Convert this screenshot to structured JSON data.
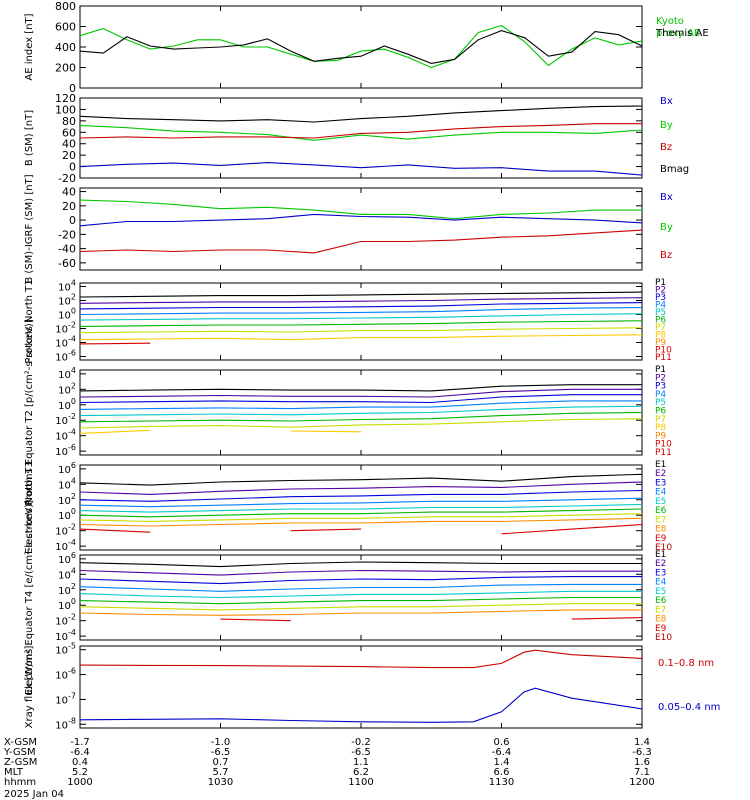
{
  "chart_data": [
    {
      "type": "line",
      "ylabel": "AE index [nT]",
      "yticks": [
        "800",
        "600",
        "400",
        "200",
        "0"
      ],
      "ylim": [
        0,
        800
      ],
      "x_hours": [
        0,
        0.083,
        0.167,
        0.25,
        0.333,
        0.417,
        0.5,
        0.583,
        0.667,
        0.75,
        0.833,
        0.917,
        1.0,
        1.083,
        1.167,
        1.25,
        1.333,
        1.417,
        1.5,
        1.583,
        1.667,
        1.75,
        1.833,
        1.917,
        2.0
      ],
      "series": [
        {
          "name": "Kyoto proxy AE",
          "color": "#00c800",
          "values": [
            510,
            580,
            470,
            380,
            410,
            470,
            470,
            400,
            400,
            330,
            260,
            270,
            360,
            380,
            300,
            200,
            280,
            540,
            610,
            450,
            220,
            380,
            490,
            420,
            460
          ]
        },
        {
          "name": "Themis AE",
          "color": "#000000",
          "values": [
            360,
            340,
            500,
            410,
            380,
            390,
            400,
            420,
            480,
            360,
            260,
            290,
            310,
            410,
            330,
            240,
            280,
            470,
            560,
            490,
            310,
            350,
            550,
            520,
            410
          ]
        }
      ]
    },
    {
      "type": "line",
      "ylabel": "B (SM) [nT]",
      "yticks": [
        "120",
        "100",
        "80",
        "60",
        "40",
        "20",
        "0",
        "-20"
      ],
      "ylim": [
        -20,
        120
      ],
      "x_hours": [
        0,
        0.167,
        0.333,
        0.5,
        0.667,
        0.833,
        1.0,
        1.167,
        1.333,
        1.5,
        1.667,
        1.833,
        2.0
      ],
      "series": [
        {
          "name": "Bx",
          "color": "#0000c8",
          "values": [
            0,
            4,
            6,
            2,
            7,
            3,
            -2,
            3,
            -3,
            -2,
            -8,
            -8,
            -15
          ]
        },
        {
          "name": "By",
          "color": "#00c800",
          "values": [
            72,
            68,
            62,
            60,
            56,
            46,
            55,
            48,
            55,
            60,
            60,
            58,
            64
          ]
        },
        {
          "name": "Bz",
          "color": "#c80000",
          "values": [
            50,
            52,
            50,
            52,
            52,
            50,
            58,
            60,
            66,
            70,
            72,
            75,
            75
          ]
        },
        {
          "name": "Bmag",
          "color": "#000000",
          "values": [
            88,
            84,
            82,
            80,
            82,
            78,
            84,
            88,
            94,
            98,
            102,
            105,
            106
          ]
        }
      ]
    },
    {
      "type": "line",
      "ylabel": "B (SM)-IGRF (SM) [nT]",
      "yticks": [
        "40",
        "20",
        "0",
        "-20",
        "-40",
        "-60"
      ],
      "ylim": [
        -70,
        45
      ],
      "x_hours": [
        0,
        0.167,
        0.333,
        0.5,
        0.667,
        0.833,
        1.0,
        1.167,
        1.333,
        1.5,
        1.667,
        1.833,
        2.0
      ],
      "series": [
        {
          "name": "Bx",
          "color": "#0000c8",
          "values": [
            -8,
            -2,
            -2,
            0,
            2,
            8,
            5,
            4,
            0,
            4,
            2,
            0,
            -4
          ]
        },
        {
          "name": "By",
          "color": "#00c800",
          "values": [
            28,
            26,
            22,
            16,
            18,
            14,
            8,
            8,
            2,
            8,
            10,
            14,
            14
          ]
        },
        {
          "name": "Bz",
          "color": "#c80000",
          "values": [
            -44,
            -42,
            -44,
            -42,
            -42,
            -46,
            -30,
            -30,
            -28,
            -24,
            -22,
            -18,
            -14
          ]
        }
      ]
    },
    {
      "type": "line",
      "ylabel": "Protons North T1",
      "log": true,
      "yticks_exp": [
        4,
        2,
        0,
        -2,
        -4,
        -6
      ],
      "ylim_exp": [
        -6.5,
        4.5
      ],
      "x_hours": [
        0,
        0.25,
        0.5,
        0.75,
        1.0,
        1.25,
        1.5,
        1.75,
        2.0
      ],
      "series": [
        {
          "name": "P1",
          "color": "#000000",
          "values": [
            2.5,
            2.6,
            2.7,
            2.7,
            2.8,
            2.9,
            3.0,
            3.1,
            3.2
          ]
        },
        {
          "name": "P2",
          "color": "#5000a0",
          "values": [
            1.6,
            1.7,
            1.8,
            1.8,
            1.9,
            2.0,
            2.2,
            2.3,
            2.4
          ]
        },
        {
          "name": "P3",
          "color": "#0000dc",
          "values": [
            0.8,
            0.9,
            1.0,
            1.0,
            1.1,
            1.2,
            1.5,
            1.6,
            1.7
          ]
        },
        {
          "name": "P4",
          "color": "#0080ff",
          "values": [
            0.0,
            0.1,
            0.2,
            0.2,
            0.3,
            0.4,
            0.7,
            0.9,
            1.0
          ]
        },
        {
          "name": "P5",
          "color": "#00c8c8",
          "values": [
            -0.8,
            -0.7,
            -0.6,
            -0.6,
            -0.5,
            -0.4,
            -0.2,
            0.0,
            0.1
          ]
        },
        {
          "name": "P6",
          "color": "#00b400",
          "values": [
            -1.7,
            -1.6,
            -1.5,
            -1.5,
            -1.4,
            -1.3,
            -1.1,
            -1.0,
            -0.9
          ]
        },
        {
          "name": "P7",
          "color": "#c8dc00",
          "values": [
            -2.6,
            -2.5,
            -2.4,
            -2.5,
            -2.3,
            -2.3,
            -2.1,
            -2.0,
            -1.9
          ]
        },
        {
          "name": "P8",
          "color": "#ffc800",
          "values": [
            -3.6,
            -3.5,
            -3.4,
            -3.6,
            -3.3,
            -3.3,
            -3.1,
            -3.0,
            -2.9
          ]
        },
        {
          "name": "P9",
          "color": "#ff8c00",
          "values": [
            null,
            null,
            null,
            null,
            null,
            null,
            null,
            null,
            null
          ]
        },
        {
          "name": "P10",
          "color": "#dc0000",
          "values": [
            -4.2,
            -4.1,
            null,
            null,
            null,
            null,
            null,
            null,
            null
          ]
        },
        {
          "name": "P11",
          "color": "#c80000",
          "values": [
            null,
            null,
            null,
            null,
            null,
            null,
            null,
            null,
            null
          ]
        }
      ]
    },
    {
      "type": "line",
      "ylabel": "Protons Equator T2 [p/(cm²-s-sr-keV)]",
      "log": true,
      "yticks_exp": [
        4,
        2,
        0,
        -2,
        -4,
        -6
      ],
      "ylim_exp": [
        -6.5,
        4.5
      ],
      "x_hours": [
        0,
        0.25,
        0.5,
        0.75,
        1.0,
        1.25,
        1.5,
        1.75,
        2.0
      ],
      "series": [
        {
          "name": "P1",
          "color": "#000000",
          "values": [
            1.8,
            1.9,
            2.0,
            1.9,
            1.9,
            1.8,
            2.4,
            2.6,
            2.6
          ]
        },
        {
          "name": "P2",
          "color": "#5000a0",
          "values": [
            1.0,
            1.1,
            1.2,
            1.1,
            1.1,
            1.0,
            1.7,
            2.0,
            2.0
          ]
        },
        {
          "name": "P3",
          "color": "#0000dc",
          "values": [
            0.3,
            0.4,
            0.5,
            0.4,
            0.4,
            0.3,
            1.0,
            1.3,
            1.3
          ]
        },
        {
          "name": "P4",
          "color": "#0080ff",
          "values": [
            -0.6,
            -0.5,
            -0.4,
            -0.5,
            -0.3,
            -0.3,
            0.2,
            0.5,
            0.5
          ]
        },
        {
          "name": "P5",
          "color": "#00c8c8",
          "values": [
            -1.4,
            -1.3,
            -1.2,
            -1.3,
            -1.1,
            -1.0,
            -0.6,
            -0.3,
            -0.2
          ]
        },
        {
          "name": "P6",
          "color": "#00b400",
          "values": [
            -2.2,
            -2.1,
            -2.0,
            -2.1,
            -1.9,
            -1.8,
            -1.4,
            -1.1,
            -1.0
          ]
        },
        {
          "name": "P7",
          "color": "#c8dc00",
          "values": [
            -3.0,
            -2.8,
            -2.7,
            -2.9,
            -2.6,
            -2.5,
            -2.2,
            -1.9,
            -1.8
          ]
        },
        {
          "name": "P8",
          "color": "#ffc800",
          "values": [
            -3.7,
            -3.3,
            null,
            -3.4,
            -3.5,
            null,
            null,
            null,
            null
          ]
        },
        {
          "name": "P9",
          "color": "#ff8c00",
          "values": [
            null,
            null,
            null,
            null,
            null,
            null,
            null,
            null,
            null
          ]
        },
        {
          "name": "P10",
          "color": "#dc0000",
          "values": [
            null,
            null,
            null,
            null,
            null,
            -3.6,
            null,
            null,
            null
          ]
        },
        {
          "name": "P11",
          "color": "#c80000",
          "values": [
            null,
            null,
            null,
            null,
            null,
            null,
            null,
            null,
            null
          ]
        }
      ]
    },
    {
      "type": "line",
      "ylabel": "Electrons North T3",
      "log": true,
      "yticks_exp": [
        6,
        4,
        2,
        0,
        -2,
        -4
      ],
      "ylim_exp": [
        -4.5,
        6.5
      ],
      "x_hours": [
        0,
        0.25,
        0.5,
        0.75,
        1.0,
        1.25,
        1.5,
        1.75,
        2.0
      ],
      "series": [
        {
          "name": "E1",
          "color": "#000000",
          "values": [
            4.2,
            3.9,
            4.3,
            4.5,
            4.6,
            4.8,
            4.4,
            5.0,
            5.3
          ]
        },
        {
          "name": "E2",
          "color": "#5000a0",
          "values": [
            3.0,
            2.7,
            3.1,
            3.4,
            3.5,
            3.7,
            3.6,
            4.0,
            4.3
          ]
        },
        {
          "name": "E3",
          "color": "#0000dc",
          "values": [
            2.0,
            1.8,
            2.1,
            2.4,
            2.5,
            2.7,
            2.7,
            3.0,
            3.2
          ]
        },
        {
          "name": "E4",
          "color": "#0080ff",
          "values": [
            1.3,
            1.1,
            1.3,
            1.5,
            1.6,
            1.8,
            1.8,
            2.0,
            2.2
          ]
        },
        {
          "name": "E5",
          "color": "#00c8c8",
          "values": [
            0.6,
            0.4,
            0.6,
            0.8,
            0.8,
            1.0,
            1.0,
            1.2,
            1.4
          ]
        },
        {
          "name": "E6",
          "color": "#00b400",
          "values": [
            0.0,
            -0.2,
            0.0,
            0.2,
            0.2,
            0.4,
            0.4,
            0.6,
            0.8
          ]
        },
        {
          "name": "E7",
          "color": "#c8dc00",
          "values": [
            -0.6,
            -0.8,
            -0.6,
            -0.4,
            -0.4,
            -0.2,
            -0.2,
            0.0,
            0.2
          ]
        },
        {
          "name": "E8",
          "color": "#ff8c00",
          "values": [
            -1.2,
            -1.4,
            -1.2,
            -1.0,
            -1.0,
            -0.8,
            -0.8,
            -0.6,
            -0.4
          ]
        },
        {
          "name": "E9",
          "color": "#dc0000",
          "values": [
            -1.8,
            -2.2,
            null,
            -2.0,
            -1.8,
            null,
            -2.4,
            -1.8,
            -1.2
          ]
        },
        {
          "name": "E10",
          "color": "#b40000",
          "values": [
            null,
            null,
            null,
            null,
            null,
            null,
            null,
            null,
            null
          ]
        }
      ]
    },
    {
      "type": "line",
      "ylabel": "Electrons Equator T4 [e/(cm²-s-sr-keV)]",
      "log": true,
      "yticks_exp": [
        6,
        4,
        2,
        0,
        -2,
        -4
      ],
      "ylim_exp": [
        -4.5,
        6.5
      ],
      "x_hours": [
        0,
        0.25,
        0.5,
        0.75,
        1.0,
        1.25,
        1.5,
        1.75,
        2.0
      ],
      "series": [
        {
          "name": "E1",
          "color": "#000000",
          "values": [
            5.5,
            5.3,
            5.0,
            5.4,
            5.6,
            5.5,
            5.4,
            5.4,
            5.4
          ]
        },
        {
          "name": "E2",
          "color": "#5000a0",
          "values": [
            4.5,
            4.2,
            3.9,
            4.3,
            4.5,
            4.4,
            4.3,
            4.4,
            4.4
          ]
        },
        {
          "name": "E3",
          "color": "#0000dc",
          "values": [
            3.4,
            3.1,
            2.8,
            3.2,
            3.4,
            3.3,
            3.6,
            3.7,
            3.7
          ]
        },
        {
          "name": "E4",
          "color": "#0080ff",
          "values": [
            2.4,
            2.1,
            1.8,
            2.1,
            2.3,
            2.3,
            2.6,
            2.7,
            2.7
          ]
        },
        {
          "name": "E5",
          "color": "#00c8c8",
          "values": [
            1.5,
            1.2,
            1.0,
            1.2,
            1.4,
            1.4,
            1.6,
            1.8,
            1.8
          ]
        },
        {
          "name": "E6",
          "color": "#00b400",
          "values": [
            0.6,
            0.4,
            0.2,
            0.4,
            0.6,
            0.6,
            0.8,
            1.0,
            1.0
          ]
        },
        {
          "name": "E7",
          "color": "#c8dc00",
          "values": [
            -0.2,
            -0.4,
            -0.6,
            -0.4,
            -0.2,
            -0.2,
            0.0,
            0.2,
            0.2
          ]
        },
        {
          "name": "E8",
          "color": "#ff8c00",
          "values": [
            -1.0,
            -1.2,
            -1.3,
            -1.2,
            -1.0,
            -1.0,
            -0.8,
            -0.6,
            -0.6
          ]
        },
        {
          "name": "E9",
          "color": "#dc0000",
          "values": [
            -1.5,
            null,
            -1.8,
            -2.0,
            null,
            null,
            null,
            -1.8,
            -1.6
          ]
        },
        {
          "name": "E10",
          "color": "#b40000",
          "values": [
            null,
            null,
            null,
            null,
            null,
            null,
            null,
            null,
            null
          ]
        }
      ]
    },
    {
      "type": "line",
      "ylabel": "Xray flux [W/m²]",
      "log": true,
      "yticks_exp": [
        -5,
        -6,
        -7,
        -8
      ],
      "ylim_exp": [
        -8.15,
        -4.85
      ],
      "x_hours": [
        0,
        0.25,
        0.5,
        0.75,
        1.0,
        1.25,
        1.4,
        1.5,
        1.58,
        1.62,
        1.75,
        2.0
      ],
      "series": [
        {
          "name": "0.1–0.8 nm",
          "color": "#c80000",
          "values": [
            -5.62,
            -5.63,
            -5.64,
            -5.66,
            -5.68,
            -5.72,
            -5.72,
            -5.55,
            -5.1,
            -5.02,
            -5.2,
            -5.35
          ]
        },
        {
          "name": "0.05–0.4 nm",
          "color": "#0000c8",
          "values": [
            -7.82,
            -7.8,
            -7.78,
            -7.85,
            -7.9,
            -7.92,
            -7.9,
            -7.5,
            -6.7,
            -6.55,
            -6.95,
            -7.38
          ]
        }
      ]
    }
  ],
  "xaxis": {
    "rows": [
      {
        "label": "X-GSM",
        "values": [
          "-1.7",
          "-1.0",
          "-0.2",
          "0.6",
          "1.4"
        ]
      },
      {
        "label": "Y-GSM",
        "values": [
          "-6.4",
          "-6.5",
          "-6.5",
          "-6.4",
          "-6.3"
        ]
      },
      {
        "label": "Z-GSM",
        "values": [
          "0.4",
          "0.7",
          "1.1",
          "1.4",
          "1.6"
        ]
      },
      {
        "label": "MLT",
        "values": [
          "5.2",
          "5.7",
          "6.2",
          "6.6",
          "7.1"
        ]
      },
      {
        "label": "hhmm",
        "values": [
          "1000",
          "1030",
          "1100",
          "1130",
          "1200"
        ]
      }
    ],
    "date": "2025 Jan 04"
  }
}
